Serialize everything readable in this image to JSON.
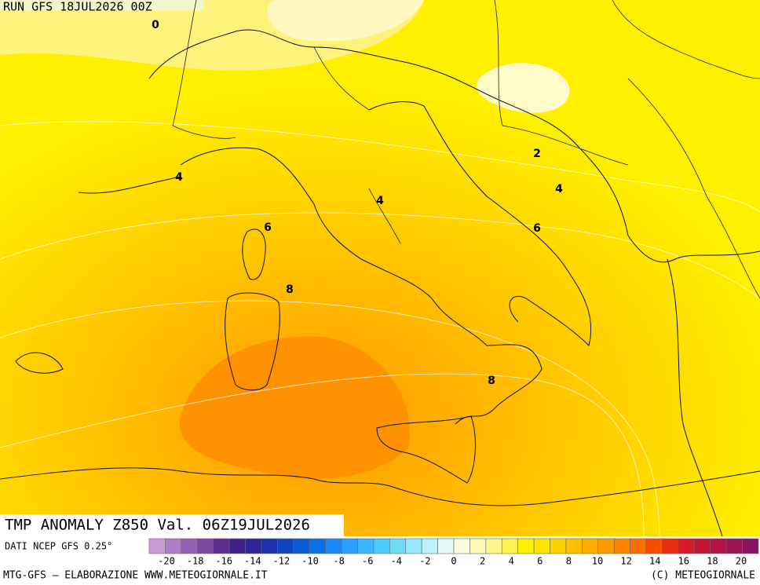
{
  "header": {
    "run": "RUN GFS 18JUL2026 00Z"
  },
  "title": "TMP ANOMALY Z850 Val. 06Z19JUL2026",
  "source": "DATI NCEP GFS 0.25°",
  "footer": {
    "left": "MTG-GFS — ELABORAZIONE WWW.METEOGIORNALE.IT",
    "right": "(C) METEOGIORNALE"
  },
  "map": {
    "contour_labels": [
      0,
      4,
      4,
      6,
      2,
      4,
      6,
      8,
      8
    ]
  },
  "legend": {
    "labels": [
      -20,
      -18,
      -16,
      -14,
      -12,
      -10,
      -8,
      -6,
      -4,
      -2,
      0,
      2,
      4,
      6,
      8,
      10,
      12,
      14,
      16,
      18,
      20
    ],
    "colors": [
      "#c89ad8",
      "#b07cc8",
      "#9660b4",
      "#7c48a0",
      "#5e2e8c",
      "#44208c",
      "#2c2496",
      "#1c30aa",
      "#1244c0",
      "#0a5ad6",
      "#0a70ea",
      "#1a88fa",
      "#2aa0ff",
      "#3cb8ff",
      "#4ccaf8",
      "#6edcf8",
      "#96e8fa",
      "#bef2fa",
      "#e6fafa",
      "#fffbe0",
      "#fff8b4",
      "#fff58a",
      "#fff250",
      "#fff000",
      "#ffe400",
      "#ffd200",
      "#ffc000",
      "#ffae00",
      "#ff9a00",
      "#ff8400",
      "#ff6c00",
      "#f84c00",
      "#e82c10",
      "#d81a28",
      "#c41438",
      "#b01448",
      "#9c1454",
      "#8a145e"
    ]
  }
}
